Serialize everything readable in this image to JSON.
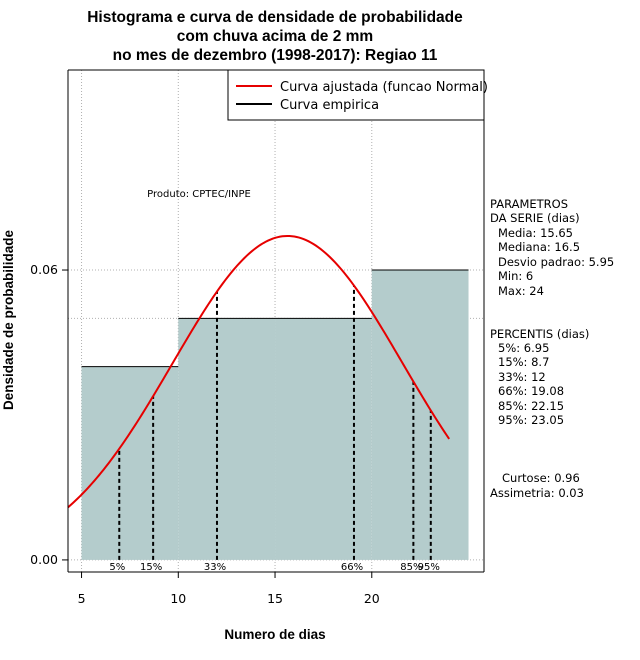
{
  "chart_data": {
    "type": "histogram",
    "title_lines": [
      "Histograma e curva de densidade de probabilidade",
      "com chuva acima de 2 mm",
      "no mes de dezembro (1998-2017): Regiao 11"
    ],
    "xlabel": "Numero de dias",
    "ylabel": "Densidade de probabilidade",
    "xlim": [
      4.3,
      25.8
    ],
    "ylim": [
      -0.0025,
      0.1014
    ],
    "x_ticks": [
      5,
      10,
      15,
      20
    ],
    "y_ticks": [
      0.0,
      0.06
    ],
    "y_tick_labels": [
      "0.00",
      "0.06"
    ],
    "grid": true,
    "bins": [
      {
        "from": 5,
        "to": 10,
        "density": 0.04
      },
      {
        "from": 10,
        "to": 15,
        "density": 0.05
      },
      {
        "from": 15,
        "to": 20,
        "density": 0.05
      },
      {
        "from": 20,
        "to": 25,
        "density": 0.06
      }
    ],
    "empirical_reference_density": 0.05,
    "normal_fit": {
      "mean": 15.65,
      "sd": 5.95,
      "x_from": 4.3,
      "x_to": 24
    },
    "percentile_lines": [
      {
        "label": "5%",
        "x": 6.95
      },
      {
        "label": "15%",
        "x": 8.7
      },
      {
        "label": "33%",
        "x": 12
      },
      {
        "label": "66%",
        "x": 19.08
      },
      {
        "label": "85%",
        "x": 22.15
      },
      {
        "label": "95%",
        "x": 23.05
      }
    ],
    "legend": {
      "position": "top-right",
      "entries": [
        {
          "label": "Curva ajustada (funcao Normal)",
          "color": "#e60000"
        },
        {
          "label": "Curva empirica",
          "color": "#000000"
        }
      ]
    },
    "annotation": "Produto: CPTEC/INPE",
    "colors": {
      "bar_fill": "#b4cccc",
      "curve": "#e60000",
      "grid": "#b0b0b0"
    }
  },
  "side_panel": {
    "parametros_title": [
      "PARAMETROS",
      "DA SERIE (dias)"
    ],
    "parametros": [
      "Media: 15.65",
      "Mediana: 16.5",
      "Desvio padrao: 5.95",
      "Min: 6",
      "Max: 24"
    ],
    "percentis_title": "PERCENTIS (dias)",
    "percentis": [
      "5%: 6.95",
      "15%: 8.7",
      "33%: 12",
      "66%: 19.08",
      "85%: 22.15",
      "95%: 23.05"
    ],
    "curtose": "Curtose: 0.96",
    "assimetria": "Assimetria: 0.03"
  }
}
